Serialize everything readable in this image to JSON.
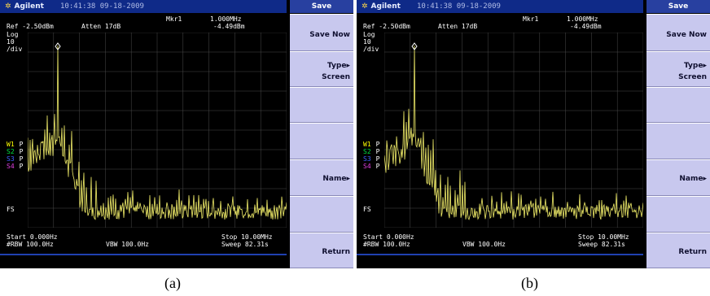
{
  "panels": [
    {
      "id": "a",
      "brand": "Agilent",
      "datetime": "10:41:38 09-18-2009",
      "menu_title": "Save",
      "marker_label": "Mkr1",
      "marker_freq": "1.000MHz",
      "marker_amp": "-4.49dBm",
      "ref_level": "Ref -2.50dBm",
      "atten": "Atten 17dB",
      "scale_type": "Log",
      "scale_value": "10",
      "scale_unit": "/div",
      "traces": [
        {
          "label": "W1",
          "state": "P",
          "color": "#ffff00"
        },
        {
          "label": "S2",
          "state": "P",
          "color": "#00e040"
        },
        {
          "label": "S3",
          "state": "P",
          "color": "#4060ff"
        },
        {
          "label": "S4",
          "state": "P",
          "color": "#e040e0"
        }
      ],
      "fs_label": "FS",
      "start": "Start 0.000Hz",
      "stop": "Stop 10.00MHz",
      "rbw": "#RBW 100.0Hz",
      "vbw": "VBW 100.0Hz",
      "sweep": "Sweep 82.31s",
      "softkeys": [
        {
          "line1": "Save Now",
          "line2": ""
        },
        {
          "line1": "Type▸",
          "line2": "Screen"
        },
        {
          "line1": "",
          "line2": ""
        },
        {
          "line1": "",
          "line2": ""
        },
        {
          "line1": "Name▸",
          "line2": ""
        },
        {
          "line1": "",
          "line2": ""
        },
        {
          "line1": "Return",
          "line2": ""
        }
      ],
      "caption": "(a)"
    },
    {
      "id": "b",
      "brand": "Agilent",
      "datetime": "10:41:38 09-18-2009",
      "menu_title": "Save",
      "marker_label": "Mkr1",
      "marker_freq": "1.000MHz",
      "marker_amp": "-4.49dBm",
      "ref_level": "Ref -2.50dBm",
      "atten": "Atten 17dB",
      "scale_type": "Log",
      "scale_value": "10",
      "scale_unit": "/div",
      "traces": [
        {
          "label": "W1",
          "state": "P",
          "color": "#ffff00"
        },
        {
          "label": "S2",
          "state": "P",
          "color": "#00e040"
        },
        {
          "label": "S3",
          "state": "P",
          "color": "#4060ff"
        },
        {
          "label": "S4",
          "state": "P",
          "color": "#e040e0"
        }
      ],
      "fs_label": "FS",
      "start": "Start 0.000Hz",
      "stop": "Stop 10.00MHz",
      "rbw": "#RBW 100.0Hz",
      "vbw": "VBW 100.0Hz",
      "sweep": "Sweep 82.31s",
      "softkeys": [
        {
          "line1": "Save Now",
          "line2": ""
        },
        {
          "line1": "Type▸",
          "line2": "Screen"
        },
        {
          "line1": "",
          "line2": ""
        },
        {
          "line1": "",
          "line2": ""
        },
        {
          "line1": "Name▸",
          "line2": ""
        },
        {
          "line1": "",
          "line2": ""
        },
        {
          "line1": "Return",
          "line2": ""
        }
      ],
      "caption": "(b)"
    }
  ],
  "colors": {
    "trace": "#f2ee6a",
    "grid": "#4a4a4a",
    "softkey_bg": "#c8c8ee",
    "topbar_bg": "#0f2a88"
  }
}
